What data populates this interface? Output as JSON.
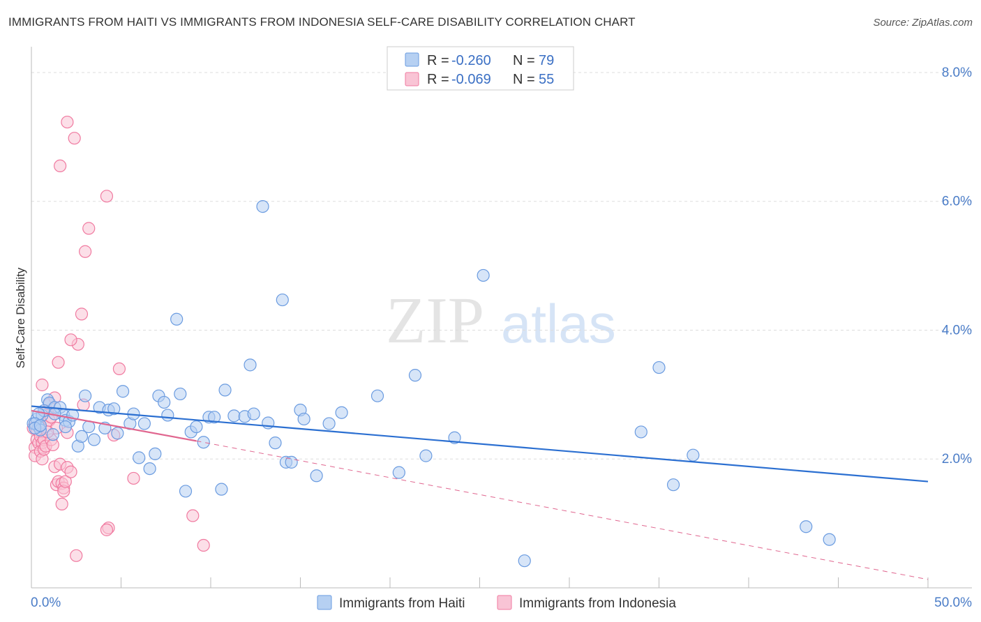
{
  "title": "IMMIGRANTS FROM HAITI VS IMMIGRANTS FROM INDONESIA SELF-CARE DISABILITY CORRELATION CHART",
  "source": "Source: ZipAtlas.com",
  "watermark": {
    "zip": "ZIP",
    "atlas": "atlas"
  },
  "legend": {
    "haiti": {
      "r_label": "R = ",
      "r_value": "-0.260",
      "n_label": "N = ",
      "n_value": "79"
    },
    "indonesia": {
      "r_label": "R = ",
      "r_value": "-0.069",
      "n_label": "N = ",
      "n_value": "55"
    }
  },
  "bottom_legend": {
    "haiti": "Immigrants from Haiti",
    "indonesia": "Immigrants from Indonesia"
  },
  "colors": {
    "haiti": "#6a9be0",
    "haiti_fill": "#b6d0f2",
    "haiti_line": "#2b6fd1",
    "indonesia": "#f07aa0",
    "indonesia_fill": "#f9c4d5",
    "indonesia_line": "#e0668f",
    "axis_text": "#4a7cc7",
    "grid": "#dddddd"
  },
  "chart_data": {
    "type": "scatter",
    "title": "IMMIGRANTS FROM HAITI VS IMMIGRANTS FROM INDONESIA SELF-CARE DISABILITY CORRELATION CHART",
    "xlabel": "",
    "ylabel": "Self-Care Disability",
    "xlim": [
      0,
      50
    ],
    "ylim": [
      0,
      8.4
    ],
    "x_tick_labels": [
      "0.0%",
      "50.0%"
    ],
    "y_ticks": [
      2,
      4,
      6,
      8
    ],
    "y_tick_labels": [
      "2.0%",
      "4.0%",
      "6.0%",
      "8.0%"
    ],
    "series": [
      {
        "name": "Immigrants from Haiti",
        "r": -0.26,
        "n": 79,
        "trend": {
          "x": [
            0,
            50
          ],
          "y": [
            2.82,
            1.65
          ],
          "style": "solid"
        },
        "points": [
          [
            0.1,
            2.55
          ],
          [
            0.3,
            2.62
          ],
          [
            0.4,
            2.5
          ],
          [
            0.6,
            2.68
          ],
          [
            0.9,
            2.92
          ],
          [
            1.0,
            2.87
          ],
          [
            1.3,
            2.8
          ],
          [
            0.7,
            2.75
          ],
          [
            1.6,
            2.8
          ],
          [
            1.8,
            2.68
          ],
          [
            1.9,
            2.6
          ],
          [
            2.1,
            2.58
          ],
          [
            2.3,
            2.68
          ],
          [
            2.6,
            2.2
          ],
          [
            2.8,
            2.35
          ],
          [
            1.9,
            2.5
          ],
          [
            3.0,
            2.98
          ],
          [
            3.2,
            2.5
          ],
          [
            3.5,
            2.3
          ],
          [
            3.8,
            2.8
          ],
          [
            4.1,
            2.48
          ],
          [
            4.3,
            2.76
          ],
          [
            4.6,
            2.78
          ],
          [
            4.8,
            2.4
          ],
          [
            5.1,
            3.05
          ],
          [
            5.5,
            2.55
          ],
          [
            5.7,
            2.7
          ],
          [
            6.0,
            2.02
          ],
          [
            6.3,
            2.55
          ],
          [
            6.6,
            1.85
          ],
          [
            6.9,
            2.08
          ],
          [
            7.1,
            2.98
          ],
          [
            7.4,
            2.88
          ],
          [
            7.6,
            2.68
          ],
          [
            8.1,
            4.17
          ],
          [
            8.3,
            3.01
          ],
          [
            8.6,
            1.5
          ],
          [
            8.9,
            2.42
          ],
          [
            9.2,
            2.5
          ],
          [
            9.6,
            2.26
          ],
          [
            9.9,
            2.65
          ],
          [
            10.2,
            2.65
          ],
          [
            10.6,
            1.53
          ],
          [
            10.8,
            3.07
          ],
          [
            11.3,
            2.67
          ],
          [
            11.9,
            2.66
          ],
          [
            12.2,
            3.46
          ],
          [
            12.4,
            2.7
          ],
          [
            12.9,
            5.92
          ],
          [
            13.2,
            2.56
          ],
          [
            13.6,
            2.25
          ],
          [
            14.0,
            4.47
          ],
          [
            14.2,
            1.95
          ],
          [
            14.5,
            1.95
          ],
          [
            15.0,
            2.76
          ],
          [
            15.2,
            2.62
          ],
          [
            15.9,
            1.74
          ],
          [
            16.6,
            2.55
          ],
          [
            17.3,
            2.72
          ],
          [
            19.3,
            2.98
          ],
          [
            20.5,
            1.79
          ],
          [
            21.4,
            3.3
          ],
          [
            22.0,
            2.05
          ],
          [
            23.6,
            2.33
          ],
          [
            25.2,
            4.85
          ],
          [
            27.5,
            0.42
          ],
          [
            34.0,
            2.42
          ],
          [
            35.0,
            3.42
          ],
          [
            35.8,
            1.6
          ],
          [
            36.9,
            2.06
          ],
          [
            43.2,
            0.95
          ],
          [
            44.5,
            0.75
          ],
          [
            0.4,
            2.7
          ],
          [
            1.2,
            2.38
          ],
          [
            1.3,
            2.7
          ],
          [
            0.2,
            2.55
          ],
          [
            0.5,
            2.45
          ],
          [
            0.2,
            2.48
          ],
          [
            0.5,
            2.52
          ]
        ]
      },
      {
        "name": "Immigrants from Indonesia",
        "r": -0.069,
        "n": 55,
        "trend": {
          "x": [
            0,
            9.2
          ],
          "y": [
            2.75,
            2.28
          ],
          "style": "solid",
          "extension": {
            "x": [
              9.2,
              50
            ],
            "y": [
              2.28,
              0.13
            ],
            "style": "dashed"
          }
        },
        "points": [
          [
            0.1,
            2.48
          ],
          [
            0.2,
            2.18
          ],
          [
            0.2,
            2.05
          ],
          [
            0.3,
            2.3
          ],
          [
            0.3,
            2.45
          ],
          [
            0.4,
            2.25
          ],
          [
            0.5,
            2.12
          ],
          [
            0.5,
            2.35
          ],
          [
            0.6,
            2.0
          ],
          [
            0.6,
            2.25
          ],
          [
            0.7,
            2.3
          ],
          [
            0.7,
            2.15
          ],
          [
            0.8,
            2.5
          ],
          [
            0.8,
            2.2
          ],
          [
            0.9,
            2.75
          ],
          [
            1.0,
            2.85
          ],
          [
            1.0,
            2.6
          ],
          [
            1.1,
            2.3
          ],
          [
            1.2,
            2.22
          ],
          [
            1.3,
            1.88
          ],
          [
            1.3,
            2.95
          ],
          [
            1.4,
            1.6
          ],
          [
            1.5,
            1.65
          ],
          [
            1.6,
            1.92
          ],
          [
            1.7,
            1.62
          ],
          [
            1.8,
            1.55
          ],
          [
            1.8,
            1.5
          ],
          [
            1.9,
            1.65
          ],
          [
            2.0,
            1.87
          ],
          [
            2.2,
            1.8
          ],
          [
            1.5,
            3.5
          ],
          [
            1.7,
            1.3
          ],
          [
            0.6,
            3.15
          ],
          [
            2.5,
            0.5
          ],
          [
            2.8,
            4.25
          ],
          [
            2.6,
            3.78
          ],
          [
            2.2,
            3.85
          ],
          [
            3.2,
            5.58
          ],
          [
            3.0,
            5.22
          ],
          [
            4.2,
            6.08
          ],
          [
            1.6,
            6.55
          ],
          [
            2.4,
            6.98
          ],
          [
            2.0,
            7.23
          ],
          [
            4.9,
            3.4
          ],
          [
            4.3,
            0.93
          ],
          [
            4.2,
            0.9
          ],
          [
            5.7,
            1.7
          ],
          [
            4.6,
            2.37
          ],
          [
            9.0,
            1.12
          ],
          [
            9.6,
            0.66
          ],
          [
            1.1,
            2.65
          ],
          [
            1.4,
            2.48
          ],
          [
            2.0,
            2.41
          ],
          [
            2.9,
            2.84
          ],
          [
            0.9,
            2.42
          ]
        ]
      }
    ]
  }
}
